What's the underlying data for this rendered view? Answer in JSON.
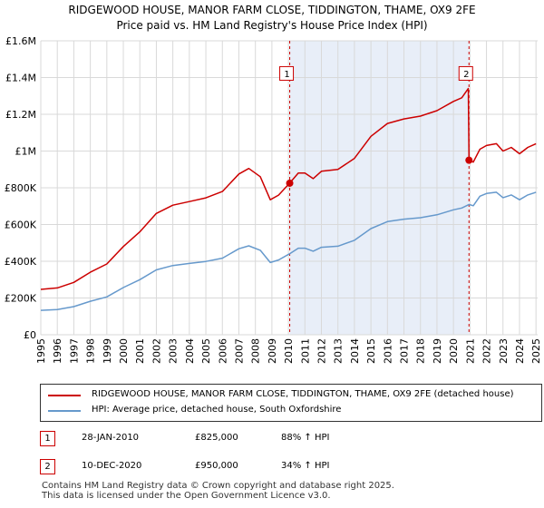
{
  "title_line1": "RIDGEWOOD HOUSE, MANOR FARM CLOSE, TIDDINGTON, THAME, OX9 2FE",
  "title_line2": "Price paid vs. HM Land Registry's House Price Index (HPI)",
  "colors": {
    "price": "#cc0000",
    "hpi": "#6699cc",
    "grid": "#d9d9d9",
    "band": "#e8eef8",
    "marker_line": "#cc0000"
  },
  "chart_data": {
    "type": "line",
    "xlim": [
      1995,
      2025.1
    ],
    "ylim": [
      0,
      1600000
    ],
    "yticks": [
      {
        "value": 0,
        "label": "£0"
      },
      {
        "value": 200000,
        "label": "£200K"
      },
      {
        "value": 400000,
        "label": "£400K"
      },
      {
        "value": 600000,
        "label": "£600K"
      },
      {
        "value": 800000,
        "label": "£800K"
      },
      {
        "value": 1000000,
        "label": "£1M"
      },
      {
        "value": 1200000,
        "label": "£1.2M"
      },
      {
        "value": 1400000,
        "label": "£1.4M"
      },
      {
        "value": 1600000,
        "label": "£1.6M"
      }
    ],
    "xticks": [
      "1995",
      "1996",
      "1997",
      "1998",
      "1999",
      "2000",
      "2001",
      "2002",
      "2003",
      "2004",
      "2005",
      "2006",
      "2007",
      "2008",
      "2009",
      "2010",
      "2011",
      "2012",
      "2013",
      "2014",
      "2015",
      "2016",
      "2017",
      "2018",
      "2019",
      "2020",
      "2021",
      "2022",
      "2023",
      "2024",
      "2025"
    ],
    "series": [
      {
        "name": "RIDGEWOOD HOUSE, MANOR FARM CLOSE, TIDDINGTON, THAME, OX9 2FE (detached house)",
        "key": "price",
        "points": [
          [
            1995.0,
            247000
          ],
          [
            1996.0,
            255000
          ],
          [
            1997.0,
            285000
          ],
          [
            1998.0,
            340000
          ],
          [
            1999.0,
            385000
          ],
          [
            2000.0,
            480000
          ],
          [
            2001.0,
            560000
          ],
          [
            2002.0,
            660000
          ],
          [
            2003.0,
            705000
          ],
          [
            2004.0,
            725000
          ],
          [
            2005.0,
            745000
          ],
          [
            2006.0,
            780000
          ],
          [
            2007.0,
            875000
          ],
          [
            2007.6,
            905000
          ],
          [
            2008.3,
            860000
          ],
          [
            2008.9,
            735000
          ],
          [
            2009.4,
            760000
          ],
          [
            2010.08,
            825000
          ],
          [
            2010.6,
            880000
          ],
          [
            2011.0,
            880000
          ],
          [
            2011.5,
            850000
          ],
          [
            2012.0,
            890000
          ],
          [
            2013.0,
            900000
          ],
          [
            2014.0,
            960000
          ],
          [
            2015.0,
            1080000
          ],
          [
            2016.0,
            1150000
          ],
          [
            2017.0,
            1175000
          ],
          [
            2018.0,
            1190000
          ],
          [
            2019.0,
            1220000
          ],
          [
            2020.0,
            1270000
          ],
          [
            2020.5,
            1290000
          ],
          [
            2020.9,
            1340000
          ],
          [
            2020.94,
            950000
          ],
          [
            2021.2,
            940000
          ],
          [
            2021.6,
            1010000
          ],
          [
            2022.0,
            1030000
          ],
          [
            2022.6,
            1040000
          ],
          [
            2023.0,
            1000000
          ],
          [
            2023.5,
            1020000
          ],
          [
            2024.0,
            985000
          ],
          [
            2024.5,
            1020000
          ],
          [
            2025.0,
            1040000
          ]
        ]
      },
      {
        "name": "HPI: Average price, detached house, South Oxfordshire",
        "key": "hpi",
        "points": [
          [
            1995.0,
            133000
          ],
          [
            1996.0,
            137000
          ],
          [
            1997.0,
            153000
          ],
          [
            1998.0,
            182000
          ],
          [
            1999.0,
            206000
          ],
          [
            2000.0,
            257000
          ],
          [
            2001.0,
            300000
          ],
          [
            2002.0,
            353000
          ],
          [
            2003.0,
            377000
          ],
          [
            2004.0,
            388000
          ],
          [
            2005.0,
            399000
          ],
          [
            2006.0,
            417000
          ],
          [
            2007.0,
            468000
          ],
          [
            2007.6,
            484000
          ],
          [
            2008.3,
            460000
          ],
          [
            2008.9,
            393000
          ],
          [
            2009.4,
            407000
          ],
          [
            2010.08,
            441000
          ],
          [
            2010.6,
            471000
          ],
          [
            2011.0,
            471000
          ],
          [
            2011.5,
            455000
          ],
          [
            2012.0,
            476000
          ],
          [
            2013.0,
            482000
          ],
          [
            2014.0,
            514000
          ],
          [
            2015.0,
            578000
          ],
          [
            2016.0,
            616000
          ],
          [
            2017.0,
            629000
          ],
          [
            2018.0,
            637000
          ],
          [
            2019.0,
            653000
          ],
          [
            2020.0,
            680000
          ],
          [
            2020.5,
            690000
          ],
          [
            2020.94,
            709000
          ],
          [
            2021.2,
            702000
          ],
          [
            2021.6,
            754000
          ],
          [
            2022.0,
            769000
          ],
          [
            2022.6,
            776000
          ],
          [
            2023.0,
            746000
          ],
          [
            2023.5,
            761000
          ],
          [
            2024.0,
            735000
          ],
          [
            2024.5,
            761000
          ],
          [
            2025.0,
            776000
          ]
        ]
      }
    ],
    "sales": [
      {
        "label": "1",
        "x": 2010.08,
        "price": 825000
      },
      {
        "label": "2",
        "x": 2020.94,
        "price": 950000
      }
    ],
    "marker_label_value": 1420000,
    "shade_start": 2010.08,
    "shade_end": 2020.94
  },
  "legend": {
    "price_label": "RIDGEWOOD HOUSE, MANOR FARM CLOSE, TIDDINGTON, THAME, OX9 2FE (detached house)",
    "hpi_label": "HPI: Average price, detached house, South Oxfordshire"
  },
  "transactions": [
    {
      "num": "1",
      "date": "28-JAN-2010",
      "price": "£825,000",
      "hpi": "88% ↑ HPI"
    },
    {
      "num": "2",
      "date": "10-DEC-2020",
      "price": "£950,000",
      "hpi": "34% ↑ HPI"
    }
  ],
  "footer": {
    "line1": "Contains HM Land Registry data © Crown copyright and database right 2025.",
    "line2": "This data is licensed under the Open Government Licence v3.0."
  }
}
